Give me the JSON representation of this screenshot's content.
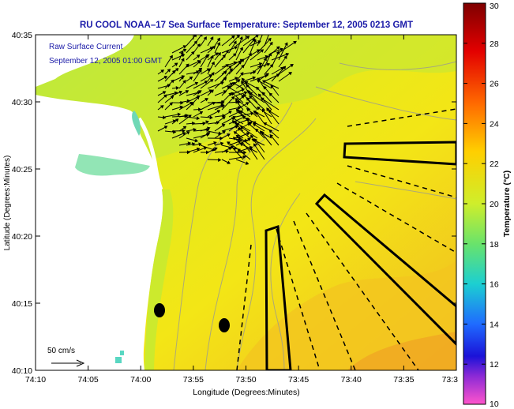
{
  "title": "RU COOL  NOAA–17  Sea Surface Temperature:  September 12, 2005 0213 GMT",
  "overlay": {
    "line1": "Raw Surface Current",
    "line2": "September 12, 2005 01:00 GMT"
  },
  "scale_label": "50 cm/s",
  "axes": {
    "xlabel": "Longitude (Degrees:Minutes)",
    "ylabel": "Latitude (Degrees:Minutes)",
    "x_ticks": [
      "74:10",
      "74:05",
      "74:00",
      "73:55",
      "73:50",
      "73:45",
      "73:40",
      "73:35",
      "73:3"
    ],
    "y_ticks": [
      "40:35",
      "40:30",
      "40:25",
      "40:20",
      "40:15",
      "40:10"
    ]
  },
  "colorbar": {
    "label": "Temperature (°C)",
    "ticks": [
      "30",
      "28",
      "26",
      "24",
      "22",
      "20",
      "18",
      "16",
      "14",
      "12",
      "10"
    ],
    "range": [
      10,
      30
    ]
  },
  "colors": {
    "sea_main": "#f3e616",
    "sea_north": "#b9ec40",
    "sea_south": "#f2ba22",
    "land": "#ffffff",
    "vector": "#000000"
  }
}
